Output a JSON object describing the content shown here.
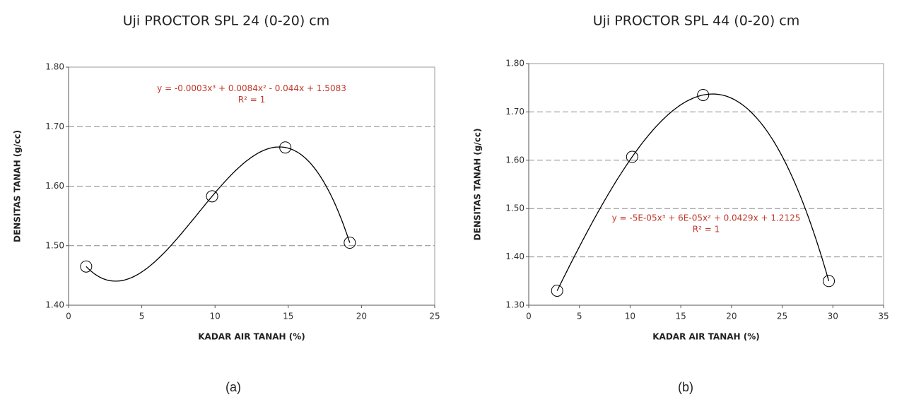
{
  "chart_data": [
    {
      "type": "scatter",
      "title": "Uji PROCTOR SPL 24 (0-20) cm",
      "x_label": "KADAR AIR TANAH (%)",
      "y_label": "DENSITAS TANAH (g/cc)",
      "caption": "(a)",
      "x": [
        1.2,
        9.8,
        14.8,
        19.2
      ],
      "values": [
        1.465,
        1.583,
        1.665,
        1.505
      ],
      "color": "#000000",
      "trend_color": "#000000",
      "annotations": [
        "y = -0.0003x³ + 0.0084x² - 0.044x + 1.5083",
        "R² = 1"
      ],
      "annotation_color": "#c0392b",
      "xlim": [
        0,
        25
      ],
      "xticks": [
        0,
        5,
        10,
        15,
        20,
        25
      ],
      "ylim": [
        1.4,
        1.8
      ],
      "yticks": [
        {
          "value": 1.4,
          "label": "1.40"
        },
        {
          "value": 1.5,
          "label": "1.50"
        },
        {
          "value": 1.6,
          "label": "1.60"
        },
        {
          "value": 1.7,
          "label": "1.70"
        },
        {
          "value": 1.8,
          "label": "1.80"
        }
      ],
      "grid": true
    },
    {
      "type": "scatter",
      "title": "Uji PROCTOR SPL 44 (0-20) cm",
      "x_label": "KADAR AIR TANAH (%)",
      "y_label": "DENSITAS TANAH (g/cc)",
      "caption": "(b)",
      "x": [
        2.8,
        10.2,
        17.2,
        29.6
      ],
      "values": [
        1.33,
        1.607,
        1.735,
        1.35
      ],
      "color": "#000000",
      "trend_color": "#000000",
      "annotations": [
        "y = -5E-05x³ + 6E-05x² + 0.0429x + 1.2125",
        "R² = 1"
      ],
      "annotation_color": "#c0392b",
      "xlim": [
        0,
        35
      ],
      "xticks": [
        0,
        5,
        10,
        15,
        20,
        25,
        30,
        35
      ],
      "ylim": [
        1.3,
        1.8
      ],
      "yticks": [
        {
          "value": 1.3,
          "label": "1.30"
        },
        {
          "value": 1.4,
          "label": "1.40"
        },
        {
          "value": 1.5,
          "label": "1.50"
        },
        {
          "value": 1.6,
          "label": "1.60"
        },
        {
          "value": 1.7,
          "label": "1.70"
        },
        {
          "value": 1.8,
          "label": "1.80"
        }
      ],
      "grid": true
    }
  ]
}
